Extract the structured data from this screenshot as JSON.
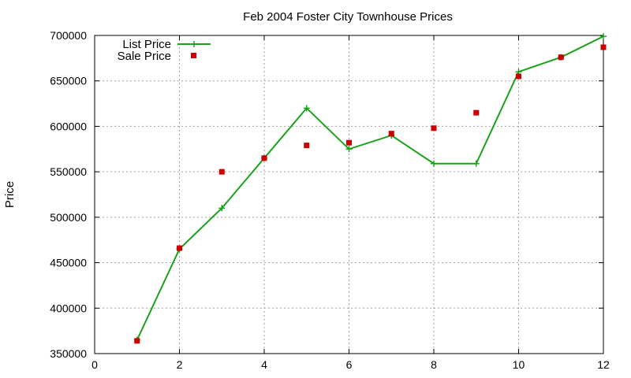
{
  "chart_data": {
    "type": "line",
    "title": "Feb 2004 Foster City Townhouse Prices",
    "xlabel": "",
    "ylabel": "Price",
    "xlim": [
      0,
      12
    ],
    "ylim": [
      350000,
      700000
    ],
    "xticks": [
      0,
      2,
      4,
      6,
      8,
      10,
      12
    ],
    "yticks": [
      350000,
      400000,
      450000,
      500000,
      550000,
      600000,
      650000,
      700000
    ],
    "grid": true,
    "legend": "top-left",
    "series": [
      {
        "name": "List Price",
        "style": "line+plus",
        "color": "#1aa31a",
        "x": [
          1,
          2,
          3,
          4,
          5,
          6,
          7,
          8,
          9,
          10,
          11,
          12
        ],
        "y": [
          365000,
          465000,
          510000,
          565000,
          620000,
          575000,
          590000,
          559000,
          559000,
          660000,
          676000,
          699000
        ]
      },
      {
        "name": "Sale Price",
        "style": "square",
        "color": "#cc0000",
        "x": [
          1,
          2,
          3,
          4,
          5,
          6,
          7,
          8,
          9,
          10,
          11,
          12
        ],
        "y": [
          364000,
          466000,
          550000,
          565000,
          579000,
          582000,
          592000,
          598000,
          615000,
          655000,
          676000,
          687000
        ]
      }
    ]
  }
}
